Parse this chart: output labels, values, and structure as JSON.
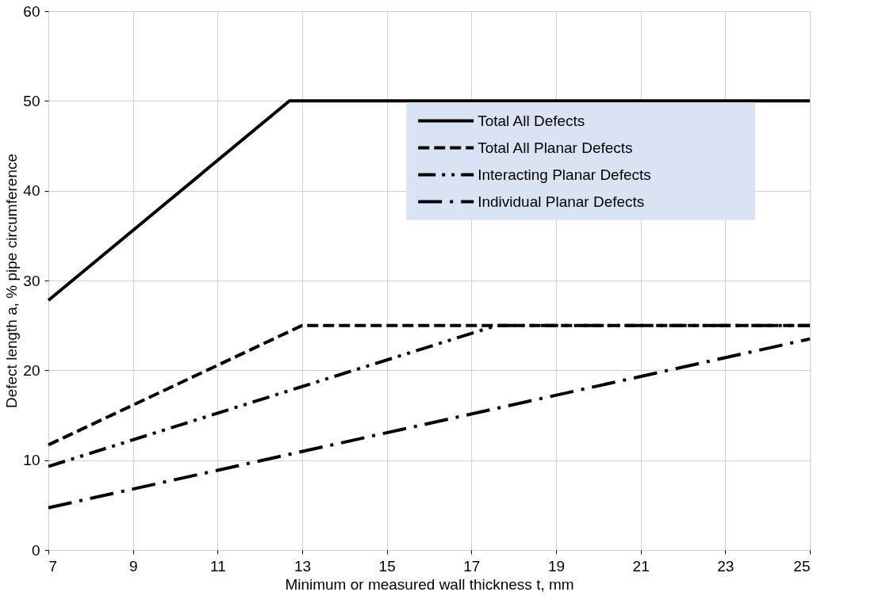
{
  "chart_data": {
    "type": "line",
    "xlabel": "Minimum or measured wall thickness t, mm",
    "ylabel": "Defect length a, % pipe circumference",
    "xlim": [
      7,
      25
    ],
    "xticks": [
      7,
      9,
      11,
      13,
      15,
      17,
      19,
      21,
      23,
      25
    ],
    "ylim": [
      0,
      60
    ],
    "yticks": [
      0,
      10,
      20,
      30,
      40,
      50,
      60
    ],
    "grid": true,
    "legend": "right",
    "marker": "none",
    "series": [
      {
        "name": "Total All Defects",
        "color": "#000000",
        "line_style": "solid",
        "x": [
          7,
          12.7,
          25
        ],
        "values": [
          27.8,
          50,
          50
        ]
      },
      {
        "name": "Total All Planar Defects",
        "color": "#000000",
        "line_style": "dashed",
        "x": [
          7,
          13,
          25
        ],
        "values": [
          11.7,
          25,
          25
        ]
      },
      {
        "name": "Interacting Planar Defects",
        "color": "#000000",
        "line_style": "dashed",
        "x": [
          7,
          13,
          17.6,
          25
        ],
        "values": [
          9.3,
          18.2,
          25,
          25
        ]
      },
      {
        "name": "Individual Planar Defects",
        "color": "#000000",
        "line_style": "dashed",
        "x": [
          7,
          25
        ],
        "values": [
          4.7,
          23.5
        ]
      }
    ]
  }
}
